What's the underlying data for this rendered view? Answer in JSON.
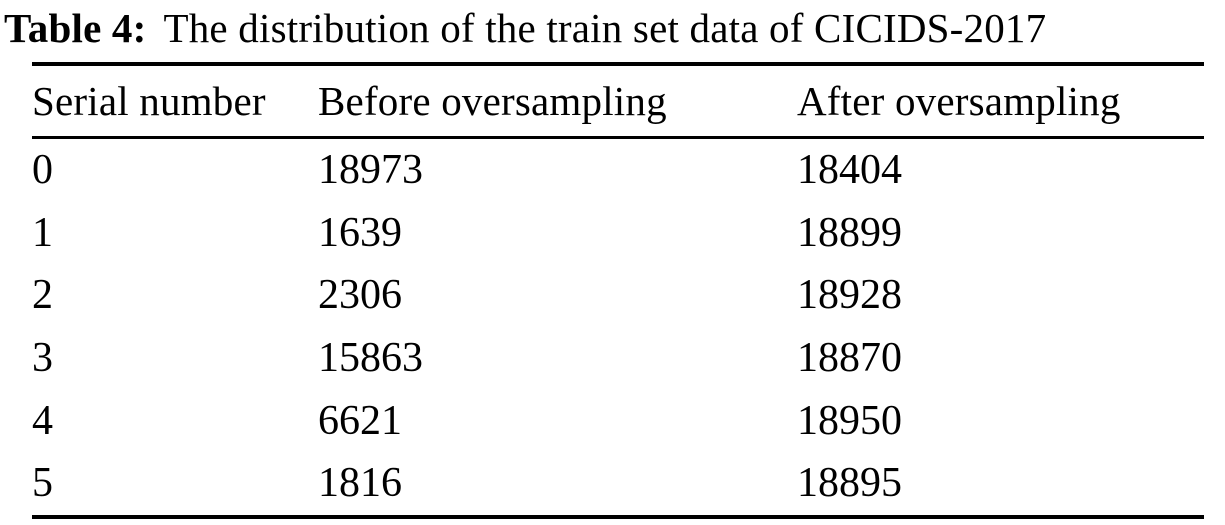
{
  "caption": {
    "label": "Table 4:",
    "text": "The distribution of the train set data of CICIDS-2017"
  },
  "table": {
    "columns": {
      "serial": "Serial number",
      "before": "Before oversampling",
      "after": "After oversampling"
    },
    "rows": [
      {
        "serial": "0",
        "before": "18973",
        "after": "18404"
      },
      {
        "serial": "1",
        "before": "1639",
        "after": "18899"
      },
      {
        "serial": "2",
        "before": "2306",
        "after": "18928"
      },
      {
        "serial": "3",
        "before": "15863",
        "after": "18870"
      },
      {
        "serial": "4",
        "before": "6621",
        "after": "18950"
      },
      {
        "serial": "5",
        "before": "1816",
        "after": "18895"
      }
    ]
  },
  "chart_data": {
    "type": "table",
    "title": "Table 4: The distribution of the train set data of CICIDS-2017",
    "columns": [
      "Serial number",
      "Before oversampling",
      "After oversampling"
    ],
    "categories": [
      "0",
      "1",
      "2",
      "3",
      "4",
      "5"
    ],
    "series": [
      {
        "name": "Before oversampling",
        "values": [
          18973,
          1639,
          2306,
          15863,
          6621,
          1816
        ]
      },
      {
        "name": "After oversampling",
        "values": [
          18404,
          18899,
          18928,
          18870,
          18950,
          18895
        ]
      }
    ]
  },
  "colors": {
    "text": "#000000",
    "background": "#ffffff",
    "rule": "#000000"
  }
}
